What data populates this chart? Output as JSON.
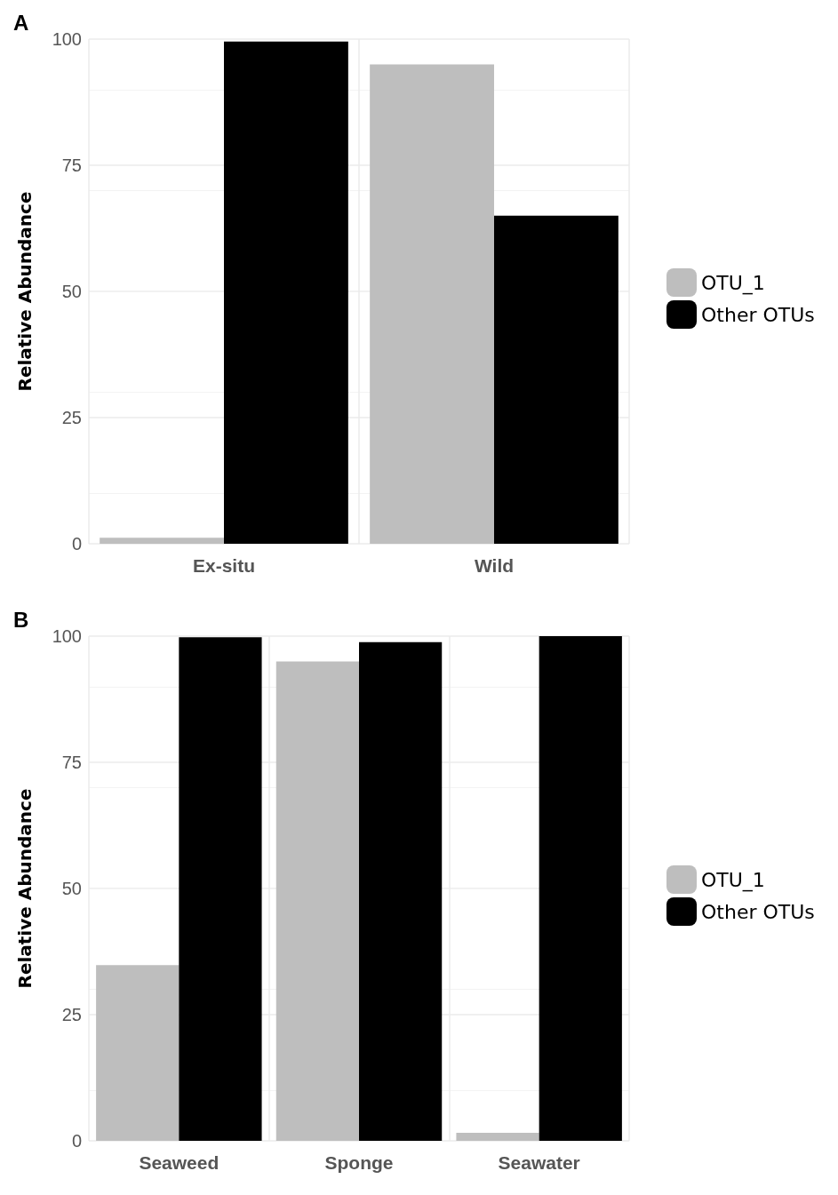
{
  "chart_data": [
    {
      "type": "bar",
      "title": "A",
      "ylabel": "Relative Abundance",
      "categories": [
        "Ex-situ",
        "Wild"
      ],
      "series": [
        {
          "name": "OTU_1",
          "color": "#bebebe",
          "values": [
            1.2,
            95
          ]
        },
        {
          "name": "Other OTUs",
          "color": "#000000",
          "values": [
            99.5,
            65
          ]
        }
      ],
      "ylim": [
        0,
        100
      ],
      "yticks": [
        0,
        25,
        50,
        75,
        100
      ],
      "grid": true,
      "legend": "right"
    },
    {
      "type": "bar",
      "title": "B",
      "ylabel": "Relative Abundance",
      "categories": [
        "Seaweed",
        "Sponge",
        "Seawater"
      ],
      "series": [
        {
          "name": "OTU_1",
          "color": "#bebebe",
          "values": [
            34.8,
            95,
            1.6
          ]
        },
        {
          "name": "Other OTUs",
          "color": "#000000",
          "values": [
            99.8,
            98.8,
            100
          ]
        }
      ],
      "ylim": [
        0,
        100
      ],
      "yticks": [
        0,
        25,
        50,
        75,
        100
      ],
      "grid": true,
      "legend": "right"
    }
  ]
}
